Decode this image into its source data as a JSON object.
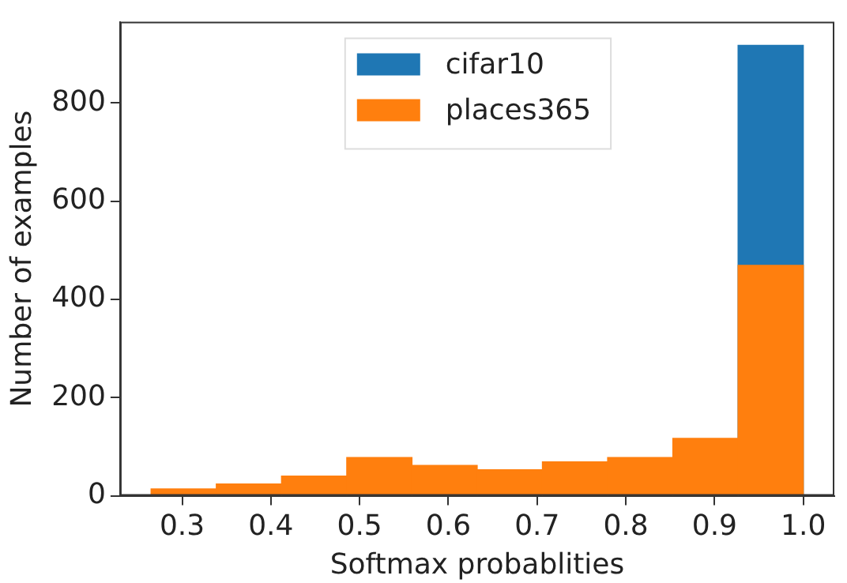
{
  "chart_data": {
    "type": "histogram",
    "xlabel": "Softmax probablities",
    "ylabel": "Number of examples",
    "xlim": [
      0.23,
      1.035
    ],
    "xticks": [
      {
        "value": 0.3,
        "label": "0.3"
      },
      {
        "value": 0.4,
        "label": "0.4"
      },
      {
        "value": 0.5,
        "label": "0.5"
      },
      {
        "value": 0.6,
        "label": "0.6"
      },
      {
        "value": 0.7,
        "label": "0.7"
      },
      {
        "value": 0.8,
        "label": "0.8"
      },
      {
        "value": 0.9,
        "label": "0.9"
      },
      {
        "value": 1.0,
        "label": "1.0"
      }
    ],
    "ylim": [
      0,
      965
    ],
    "yticks": [
      0,
      200,
      400,
      600,
      800
    ],
    "grid": false,
    "legend": "top",
    "bins": [
      0.265,
      0.3385,
      0.412,
      0.4855,
      0.559,
      0.6325,
      0.706,
      0.7795,
      0.853,
      0.9265,
      1.0
    ],
    "series": [
      {
        "name": "cifar10",
        "color": "#1f77b4",
        "values": [
          null,
          null,
          null,
          null,
          null,
          null,
          null,
          null,
          null,
          917
        ]
      },
      {
        "name": "places365",
        "color": "#ff7f0e",
        "values": [
          14,
          24,
          40,
          78,
          62,
          53,
          69,
          78,
          117,
          469
        ]
      }
    ]
  }
}
